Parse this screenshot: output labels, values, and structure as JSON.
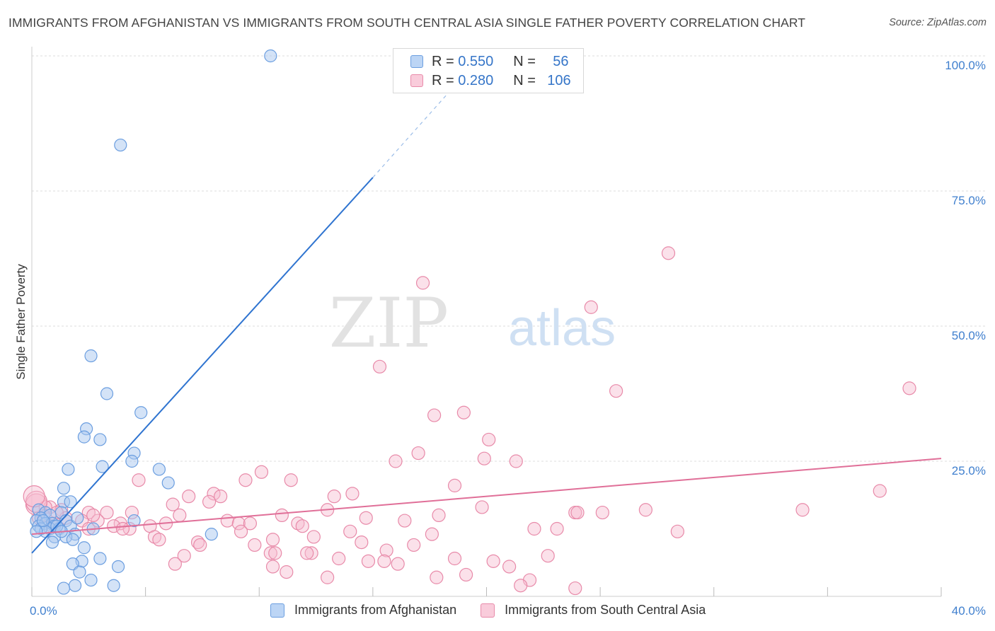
{
  "header": {
    "title": "IMMIGRANTS FROM AFGHANISTAN VS IMMIGRANTS FROM SOUTH CENTRAL ASIA SINGLE FATHER POVERTY CORRELATION CHART",
    "source": "Source: ZipAtlas.com"
  },
  "watermark": {
    "zip": "ZIP",
    "atlas": "atlas"
  },
  "legend_top": {
    "rows": [
      {
        "r_label": "R = ",
        "r_value": "0.550",
        "n_label": "N = ",
        "n_value": "56"
      },
      {
        "r_label": "R = ",
        "r_value": "0.280",
        "n_label": "N = ",
        "n_value": "106"
      }
    ]
  },
  "legend_bottom": {
    "items": [
      {
        "label": "Immigrants from Afghanistan"
      },
      {
        "label": "Immigrants from South Central Asia"
      }
    ]
  },
  "colors": {
    "blue_fill": "#a9c8f0",
    "blue_stroke": "#6b9ee0",
    "blue_line": "#2f74d0",
    "pink_fill": "#f7bdd0",
    "pink_stroke": "#e88aa9",
    "pink_line": "#e06f98",
    "axis_tick_text": "#3f7fce",
    "grid": "#dddddd"
  },
  "chart_data": {
    "type": "scatter",
    "title": "IMMIGRANTS FROM AFGHANISTAN VS IMMIGRANTS FROM SOUTH CENTRAL ASIA SINGLE FATHER POVERTY CORRELATION CHART",
    "xlabel": "",
    "ylabel": "Single Father Poverty",
    "xlim": [
      0,
      40
    ],
    "ylim": [
      0,
      100
    ],
    "x_tick_labels": [
      "0.0%",
      "40.0%"
    ],
    "y_ticks": [
      25,
      50,
      75,
      100
    ],
    "y_tick_labels": [
      "25.0%",
      "50.0%",
      "75.0%",
      "100.0%"
    ],
    "grid": true,
    "legend_position": "top-center",
    "series": [
      {
        "name": "Immigrants from Afghanistan",
        "R": 0.55,
        "N": 56,
        "trend": {
          "x": [
            0,
            15.0
          ],
          "y": [
            8.0,
            77.5
          ],
          "dashed_to": {
            "x": 18.5,
            "y": 94.0
          }
        },
        "points": [
          [
            10.5,
            100
          ],
          [
            3.9,
            83.5
          ],
          [
            2.6,
            44.5
          ],
          [
            3.3,
            37.5
          ],
          [
            4.8,
            34.0
          ],
          [
            2.4,
            31.0
          ],
          [
            2.3,
            29.5
          ],
          [
            3.0,
            29.0
          ],
          [
            4.5,
            26.5
          ],
          [
            4.4,
            25.0
          ],
          [
            3.1,
            24.0
          ],
          [
            5.6,
            23.5
          ],
          [
            1.6,
            23.5
          ],
          [
            6.0,
            21.0
          ],
          [
            1.4,
            20.0
          ],
          [
            1.4,
            17.5
          ],
          [
            1.7,
            17.5
          ],
          [
            0.3,
            16.0
          ],
          [
            1.3,
            15.5
          ],
          [
            0.6,
            15.5
          ],
          [
            0.8,
            15.0
          ],
          [
            0.4,
            14.5
          ],
          [
            1.5,
            14.0
          ],
          [
            4.5,
            14.0
          ],
          [
            0.2,
            14.0
          ],
          [
            0.6,
            13.5
          ],
          [
            0.9,
            13.5
          ],
          [
            0.3,
            13.0
          ],
          [
            1.0,
            13.0
          ],
          [
            1.7,
            13.0
          ],
          [
            0.8,
            12.5
          ],
          [
            0.4,
            12.5
          ],
          [
            1.2,
            12.5
          ],
          [
            0.6,
            12.0
          ],
          [
            2.7,
            12.5
          ],
          [
            0.2,
            12.0
          ],
          [
            1.9,
            11.5
          ],
          [
            1.0,
            11.0
          ],
          [
            1.5,
            11.0
          ],
          [
            7.9,
            11.5
          ],
          [
            1.8,
            10.5
          ],
          [
            0.9,
            10.0
          ],
          [
            2.3,
            9.0
          ],
          [
            3.0,
            7.0
          ],
          [
            2.2,
            6.5
          ],
          [
            1.8,
            6.0
          ],
          [
            2.1,
            4.5
          ],
          [
            3.8,
            5.5
          ],
          [
            2.6,
            3.0
          ],
          [
            1.9,
            2.0
          ],
          [
            1.4,
            1.5
          ],
          [
            3.6,
            2.0
          ],
          [
            1.1,
            13.0
          ],
          [
            1.3,
            12.0
          ],
          [
            0.5,
            14.0
          ],
          [
            2.0,
            14.5
          ]
        ]
      },
      {
        "name": "Immigrants from South Central Asia",
        "R": 0.28,
        "N": 106,
        "trend": {
          "x": [
            0,
            40
          ],
          "y": [
            11.5,
            25.5
          ]
        },
        "points": [
          [
            28.0,
            63.5
          ],
          [
            17.2,
            58.0
          ],
          [
            24.6,
            53.5
          ],
          [
            15.3,
            42.5
          ],
          [
            25.7,
            38.0
          ],
          [
            38.6,
            38.5
          ],
          [
            19.0,
            34.0
          ],
          [
            17.7,
            33.5
          ],
          [
            20.1,
            29.0
          ],
          [
            17.0,
            26.5
          ],
          [
            19.9,
            25.5
          ],
          [
            16.0,
            25.0
          ],
          [
            21.3,
            25.0
          ],
          [
            10.1,
            23.0
          ],
          [
            9.4,
            21.5
          ],
          [
            11.4,
            21.5
          ],
          [
            4.7,
            21.5
          ],
          [
            18.6,
            20.5
          ],
          [
            37.3,
            19.5
          ],
          [
            14.1,
            19.0
          ],
          [
            8.0,
            19.0
          ],
          [
            8.3,
            18.5
          ],
          [
            6.9,
            18.5
          ],
          [
            13.3,
            18.5
          ],
          [
            7.8,
            17.5
          ],
          [
            0.2,
            17.0
          ],
          [
            6.2,
            17.0
          ],
          [
            0.8,
            16.5
          ],
          [
            1.3,
            16.0
          ],
          [
            0.6,
            16.5
          ],
          [
            19.8,
            16.5
          ],
          [
            13.0,
            16.0
          ],
          [
            3.3,
            15.5
          ],
          [
            2.5,
            15.5
          ],
          [
            4.4,
            15.5
          ],
          [
            23.9,
            15.5
          ],
          [
            25.1,
            15.5
          ],
          [
            27.0,
            16.0
          ],
          [
            33.9,
            16.0
          ],
          [
            24.0,
            15.5
          ],
          [
            11.0,
            15.0
          ],
          [
            17.9,
            15.0
          ],
          [
            6.5,
            15.0
          ],
          [
            1.5,
            14.5
          ],
          [
            14.7,
            14.5
          ],
          [
            0.3,
            14.5
          ],
          [
            2.9,
            14.0
          ],
          [
            8.6,
            14.0
          ],
          [
            5.9,
            13.5
          ],
          [
            2.2,
            14.0
          ],
          [
            16.4,
            14.0
          ],
          [
            9.1,
            13.5
          ],
          [
            11.7,
            13.5
          ],
          [
            3.9,
            13.5
          ],
          [
            1.0,
            13.5
          ],
          [
            9.6,
            13.5
          ],
          [
            11.9,
            13.0
          ],
          [
            5.2,
            13.0
          ],
          [
            3.6,
            13.0
          ],
          [
            0.9,
            13.0
          ],
          [
            22.1,
            12.5
          ],
          [
            23.1,
            12.5
          ],
          [
            2.5,
            12.5
          ],
          [
            4.3,
            12.5
          ],
          [
            4.0,
            12.5
          ],
          [
            9.2,
            12.0
          ],
          [
            28.4,
            12.0
          ],
          [
            14.0,
            12.0
          ],
          [
            17.6,
            11.5
          ],
          [
            5.4,
            11.0
          ],
          [
            12.4,
            11.0
          ],
          [
            10.6,
            10.5
          ],
          [
            5.6,
            10.5
          ],
          [
            7.3,
            10.0
          ],
          [
            14.5,
            10.0
          ],
          [
            16.8,
            9.5
          ],
          [
            7.4,
            9.5
          ],
          [
            9.8,
            9.5
          ],
          [
            15.6,
            8.5
          ],
          [
            12.3,
            8.0
          ],
          [
            12.1,
            8.0
          ],
          [
            10.5,
            8.0
          ],
          [
            10.7,
            8.0
          ],
          [
            6.7,
            7.5
          ],
          [
            22.7,
            7.5
          ],
          [
            13.5,
            7.0
          ],
          [
            14.8,
            6.5
          ],
          [
            20.3,
            6.5
          ],
          [
            16.1,
            6.0
          ],
          [
            6.3,
            6.0
          ],
          [
            18.6,
            7.0
          ],
          [
            15.5,
            6.5
          ],
          [
            10.6,
            5.5
          ],
          [
            11.2,
            4.5
          ],
          [
            21.0,
            5.5
          ],
          [
            21.9,
            3.0
          ],
          [
            19.1,
            4.0
          ],
          [
            17.8,
            3.5
          ],
          [
            21.5,
            2.0
          ],
          [
            23.9,
            1.5
          ],
          [
            13.0,
            3.5
          ],
          [
            0.5,
            15.0
          ],
          [
            1.1,
            15.5
          ],
          [
            2.7,
            15.0
          ],
          [
            0.2,
            17.5
          ],
          [
            0.1,
            18.5
          ]
        ]
      }
    ]
  }
}
